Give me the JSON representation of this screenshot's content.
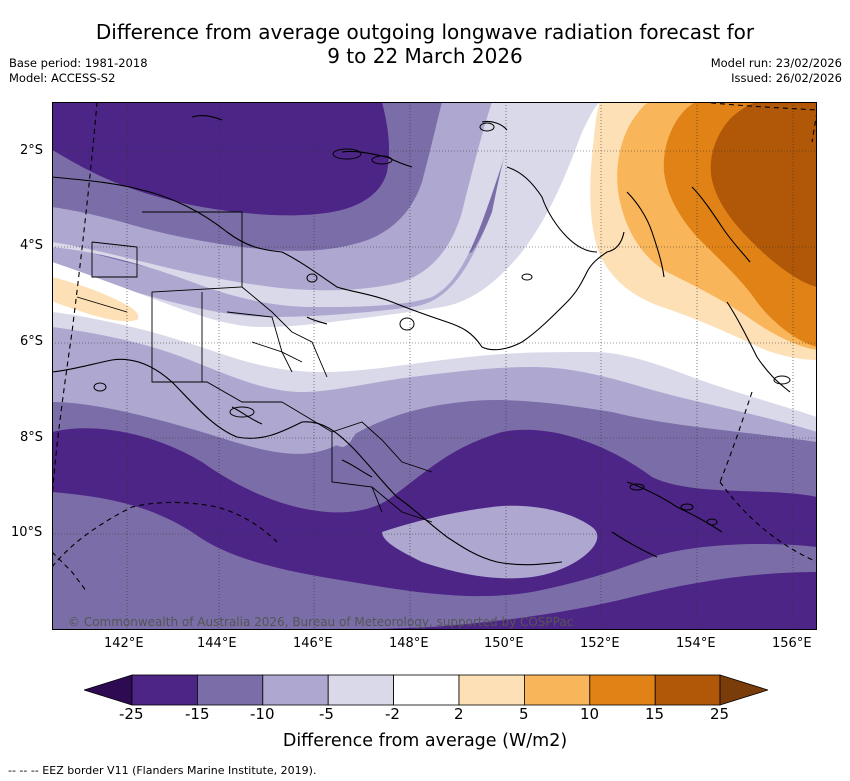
{
  "title": {
    "line1": "Difference from average outgoing longwave radiation forecast for",
    "line2": "9 to 22 March 2026"
  },
  "meta": {
    "base_period": "Base period: 1981-2018",
    "model": "Model: ACCESS-S2",
    "model_run": "Model run: 23/02/2026",
    "issued": "Issued: 26/02/2026"
  },
  "axes": {
    "lat_labels": [
      "2°S",
      "4°S",
      "6°S",
      "8°S",
      "10°S"
    ],
    "lon_labels": [
      "142°E",
      "144°E",
      "146°E",
      "148°E",
      "150°E",
      "152°E",
      "154°E",
      "156°E"
    ]
  },
  "copyright": "© Commonwealth of Australia 2026, Bureau of Meteorology, supported by COSPPac",
  "colorbar": {
    "title": "Difference from average (W/m2)",
    "labels": [
      "-25",
      "-15",
      "-10",
      "-5",
      "-2",
      "2",
      "5",
      "10",
      "15",
      "25"
    ],
    "colors": [
      "#2d0a52",
      "#4d2586",
      "#7b6ea8",
      "#aea8d1",
      "#d9d9ea",
      "#ffffff",
      "#fde0b6",
      "#f9b55a",
      "#e08216",
      "#b05808",
      "#7a3c08"
    ]
  },
  "footer": {
    "legend_line": "-- -- -- EEZ border V11 (Flanders Marine Institute, 2019)."
  }
}
